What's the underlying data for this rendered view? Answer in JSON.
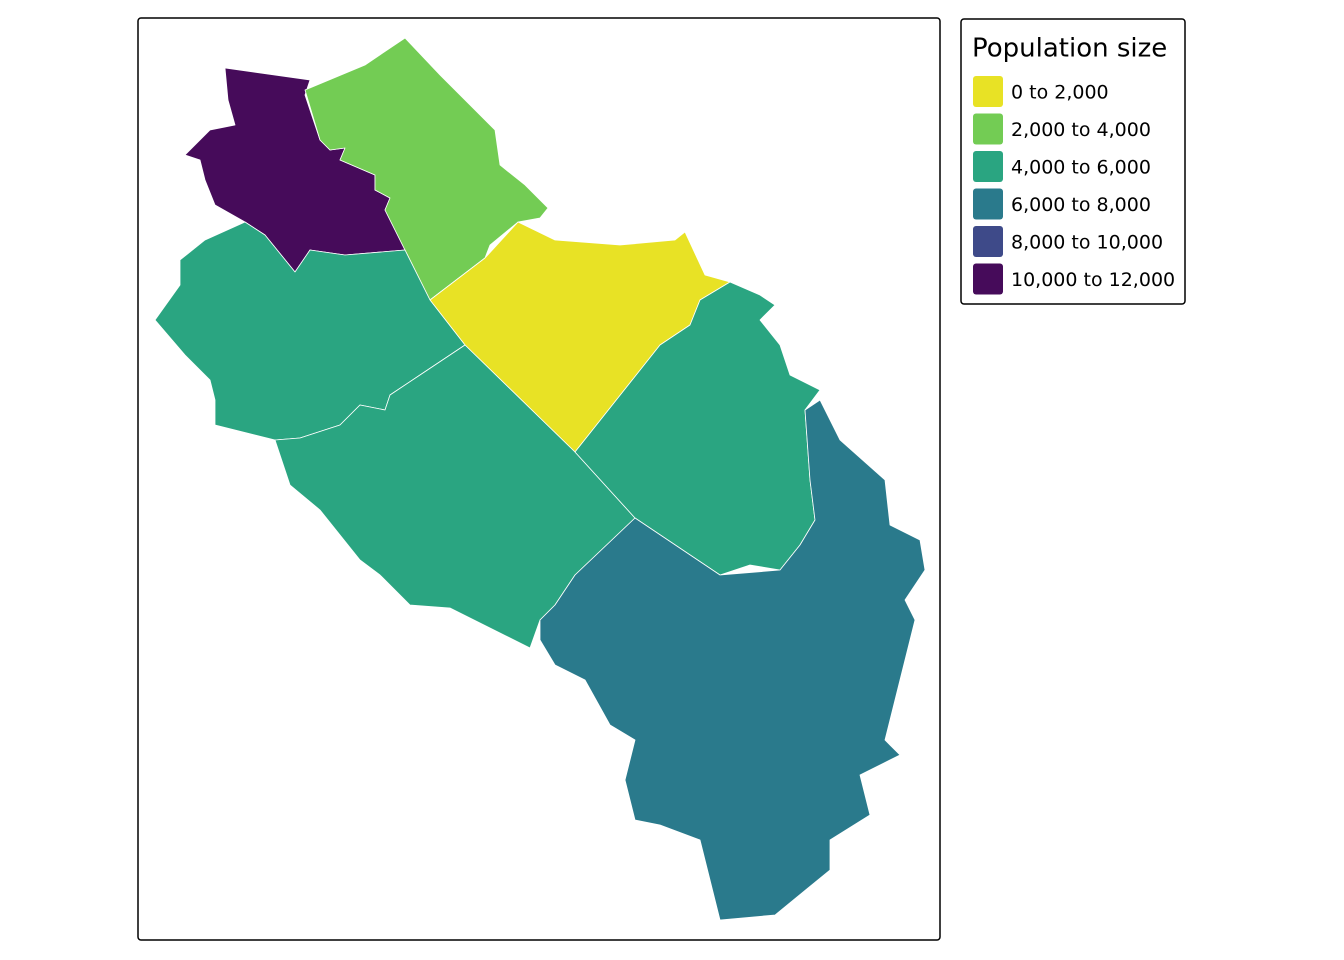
{
  "legend": {
    "title": "Population size",
    "items": [
      {
        "label": "0 to 2,000",
        "color": "#e8e225"
      },
      {
        "label": "2,000 to 4,000",
        "color": "#73cc54"
      },
      {
        "label": "4,000 to 6,000",
        "color": "#2aa581"
      },
      {
        "label": "6,000 to 8,000",
        "color": "#2a7a8c"
      },
      {
        "label": "8,000 to 10,000",
        "color": "#3e4a89"
      },
      {
        "label": "10,000 to 12,000",
        "color": "#460b5a"
      }
    ]
  }
}
